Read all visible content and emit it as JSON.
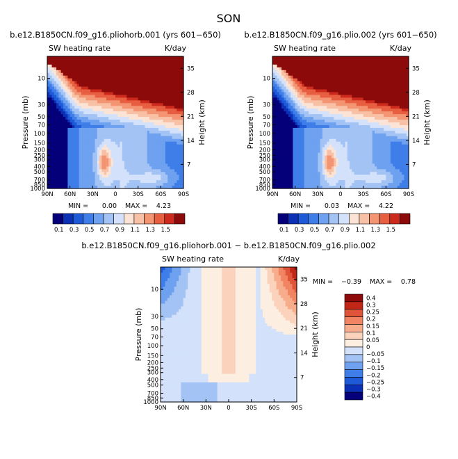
{
  "figure": {
    "suptitle": "SON"
  },
  "colors": {
    "top_scale": [
      "#05007a",
      "#0b2fb5",
      "#1e5ad8",
      "#3f7ee8",
      "#6ea1f0",
      "#a3c3f5",
      "#d3e2fa",
      "#fbe4d6",
      "#f8c0a4",
      "#f39473",
      "#e75f40",
      "#cc2a1c",
      "#8c0a0a"
    ],
    "diff_scale": [
      "#05007a",
      "#0b2fb5",
      "#1e5ad8",
      "#3f7ee8",
      "#6ea1f0",
      "#a3c3f5",
      "#d3e2fa",
      "#fdeee2",
      "#fbd3bc",
      "#f7ad8c",
      "#f18462",
      "#e0553a",
      "#c22617",
      "#8c0a0a"
    ]
  },
  "chart_data": [
    {
      "type": "heatmap",
      "title": "b.e12.B1850CN.f09_g16.pliohorb.001 (yrs 601−650)",
      "variable_label": "SW heating rate",
      "units": "K/day",
      "ylabel": "Pressure (mb)",
      "y2label": "Height (km)",
      "x_ticks": [
        "90N",
        "60N",
        "30N",
        "0",
        "30S",
        "60S",
        "90S"
      ],
      "y_ticks": [
        "10",
        "30",
        "50",
        "70",
        "100",
        "150",
        "200",
        "250",
        "300",
        "400",
        "500",
        "700",
        "850",
        "1000"
      ],
      "y2_ticks": [
        "35",
        "28",
        "21",
        "14",
        "7"
      ],
      "min_label": "MIN =",
      "min_value": "0.00",
      "max_label": "MAX =",
      "max_value": "4.23",
      "min": 0.0,
      "max": 4.23
    },
    {
      "type": "heatmap",
      "title": "b.e12.B1850CN.f09_g16.plio.002 (yrs 601−650)",
      "variable_label": "SW heating rate",
      "units": "K/day",
      "ylabel": "Pressure (mb)",
      "y2label": "Height (km)",
      "x_ticks": [
        "90N",
        "60N",
        "30N",
        "0",
        "30S",
        "60S",
        "90S"
      ],
      "y_ticks": [
        "10",
        "30",
        "50",
        "70",
        "100",
        "150",
        "200",
        "250",
        "300",
        "400",
        "500",
        "700",
        "850",
        "1000"
      ],
      "y2_ticks": [
        "35",
        "28",
        "21",
        "14",
        "7"
      ],
      "min_label": "MIN =",
      "min_value": "0.03",
      "max_label": "MAX =",
      "max_value": "4.22",
      "min": 0.03,
      "max": 4.22
    },
    {
      "type": "heatmap",
      "title": "b.e12.B1850CN.f09_g16.pliohorb.001 − b.e12.B1850CN.f09_g16.plio.002",
      "variable_label": "SW heating rate",
      "units": "K/day",
      "ylabel": "Pressure (mb)",
      "y2label": "Height (km)",
      "x_ticks": [
        "90N",
        "60N",
        "30N",
        "0",
        "30S",
        "60S",
        "90S"
      ],
      "y_ticks": [
        "10",
        "30",
        "50",
        "70",
        "100",
        "150",
        "200",
        "250",
        "300",
        "400",
        "500",
        "700",
        "850",
        "1000"
      ],
      "y2_ticks": [
        "35",
        "28",
        "21",
        "14",
        "7"
      ],
      "min_label": "MIN =",
      "min_value": "−0.39",
      "max_label": "MAX =",
      "max_value": "0.78",
      "min": -0.39,
      "max": 0.78
    }
  ],
  "colorbars": {
    "top": [
      "0.1",
      "0.3",
      "0.5",
      "0.7",
      "0.9",
      "1.1",
      "1.3",
      "1.5"
    ],
    "diff": [
      "0.4",
      "0.3",
      "0.25",
      "0.2",
      "0.15",
      "0.1",
      "0.05",
      "0",
      "−0.05",
      "−0.1",
      "−0.15",
      "−0.2",
      "−0.25",
      "−0.3",
      "−0.4"
    ]
  }
}
